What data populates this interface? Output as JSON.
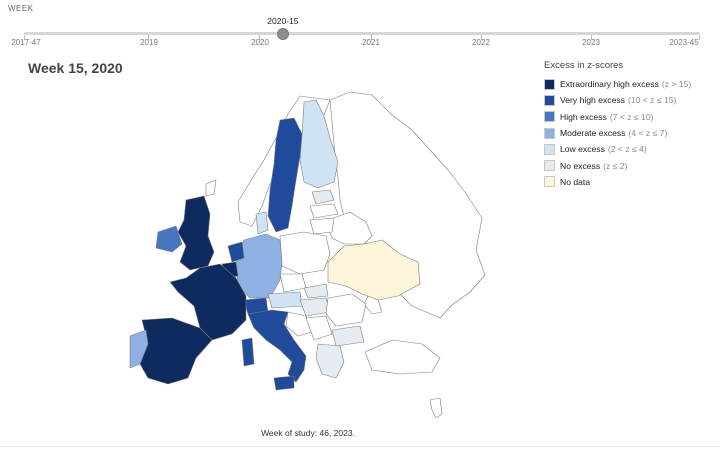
{
  "slider": {
    "label": "WEEK",
    "current_label": "2020-15",
    "start_label": "2017-47",
    "end_label": "2023-45",
    "year_ticks": [
      "2019",
      "2020",
      "2021",
      "2022",
      "2023"
    ],
    "current_position": 0.383
  },
  "map": {
    "title": "Week 15, 2020"
  },
  "legend": {
    "title": "Excess in z-scores",
    "items": [
      {
        "label": "Extraordinary high excess",
        "range": "(z > 15)",
        "color": "#0f2a5f"
      },
      {
        "label": "Very high excess",
        "range": "(10 < z ≤ 15)",
        "color": "#1f4b9a"
      },
      {
        "label": "High excess",
        "range": "(7 < z ≤ 10)",
        "color": "#4876c2"
      },
      {
        "label": "Moderate excess",
        "range": "(4 < z ≤ 7)",
        "color": "#8fb0e3"
      },
      {
        "label": "Low excess",
        "range": "(2 < z ≤ 4)",
        "color": "#cfe3f5"
      },
      {
        "label": "No excess",
        "range": "(z ≤ 2)",
        "color": "#e6ebf2"
      },
      {
        "label": "No data",
        "range": "",
        "color": "#fbf6d9"
      }
    ],
    "no_fill_color": "#ffffff"
  },
  "footnote": "Week of study: 46, 2023."
}
